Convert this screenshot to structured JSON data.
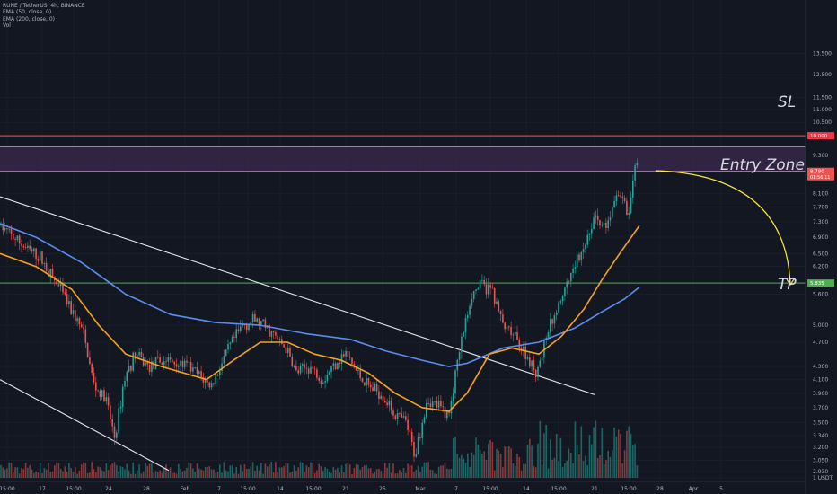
{
  "legend": {
    "symbol_line": "RUNE / TetherUS, 4h, BINANCE",
    "ema50": "EMA (50, close, 0)",
    "ema200": "EMA (200, close, 0)",
    "volume": "Vol"
  },
  "annotations": {
    "sl": "SL",
    "entry": "Entry Zone",
    "tp": "TP"
  },
  "price_labels": {
    "sl": "10.000",
    "current_price": "8.780",
    "countdown": "01:56:11",
    "tp": "5.835"
  },
  "colors": {
    "background": "#131722",
    "grid": "#1e222d",
    "up": "#26a69a",
    "down": "#ef5350",
    "ema50": "#f7a21b",
    "ema200": "#5b8def",
    "sl_line": "#f23645",
    "tp_line": "#4caf50",
    "zone_fill": "#3b2a4d",
    "trendline": "#ffffff",
    "arrow": "#ffeb3b"
  },
  "chart_data": {
    "type": "candlestick",
    "y_scale": "log",
    "currency": "USDT",
    "y_range": [
      2.9,
      16.0
    ],
    "y_ticks": [
      "1 USDT",
      "13.500",
      "12.500",
      "11.500",
      "11.000",
      "10.500",
      "9.300",
      "8.100",
      "7.700",
      "7.300",
      "6.900",
      "6.500",
      "6.200",
      "5.600",
      "5.000",
      "4.700",
      "4.300",
      "4.100",
      "3.900",
      "3.700",
      "3.500",
      "3.340",
      "3.200",
      "3.050",
      "2.930"
    ],
    "x_ticks": [
      "15:00",
      "17",
      "15:00",
      "24",
      "28",
      "Feb",
      "7",
      "15:00",
      "14",
      "15:00",
      "21",
      "25",
      "Mar",
      "7",
      "15:00",
      "14",
      "15:00",
      "21",
      "15:00",
      "28",
      "Apr",
      "5"
    ],
    "levels": {
      "stop_loss": 10.0,
      "entry_zone": [
        8.78,
        9.6
      ],
      "take_profit": 5.835
    },
    "price_path": [
      [
        0,
        7.2
      ],
      [
        30,
        6.6
      ],
      [
        45,
        6.4
      ],
      [
        70,
        5.6
      ],
      [
        92,
        4.9
      ],
      [
        105,
        4.0
      ],
      [
        118,
        3.8
      ],
      [
        128,
        3.3
      ],
      [
        138,
        4.1
      ],
      [
        150,
        4.5
      ],
      [
        165,
        4.3
      ],
      [
        185,
        4.4
      ],
      [
        210,
        4.3
      ],
      [
        235,
        4.0
      ],
      [
        255,
        4.6
      ],
      [
        270,
        5.0
      ],
      [
        285,
        5.1
      ],
      [
        300,
        4.9
      ],
      [
        318,
        4.6
      ],
      [
        330,
        4.2
      ],
      [
        345,
        4.3
      ],
      [
        360,
        4.1
      ],
      [
        375,
        4.4
      ],
      [
        385,
        4.5
      ],
      [
        398,
        4.2
      ],
      [
        410,
        4.0
      ],
      [
        425,
        3.9
      ],
      [
        440,
        3.6
      ],
      [
        452,
        3.5
      ],
      [
        462,
        3.1
      ],
      [
        475,
        3.8
      ],
      [
        490,
        3.7
      ],
      [
        500,
        3.6
      ],
      [
        512,
        4.6
      ],
      [
        525,
        5.6
      ],
      [
        535,
        5.8
      ],
      [
        548,
        5.7
      ],
      [
        560,
        5.0
      ],
      [
        572,
        4.8
      ],
      [
        585,
        4.5
      ],
      [
        597,
        4.2
      ],
      [
        610,
        4.9
      ],
      [
        622,
        5.4
      ],
      [
        635,
        6.0
      ],
      [
        648,
        6.6
      ],
      [
        662,
        7.4
      ],
      [
        675,
        7.1
      ],
      [
        690,
        8.2
      ],
      [
        700,
        7.5
      ],
      [
        708,
        9.0
      ]
    ],
    "ema50": [
      [
        0,
        6.5
      ],
      [
        40,
        6.2
      ],
      [
        80,
        5.7
      ],
      [
        110,
        5.0
      ],
      [
        140,
        4.5
      ],
      [
        180,
        4.3
      ],
      [
        230,
        4.1
      ],
      [
        260,
        4.4
      ],
      [
        290,
        4.7
      ],
      [
        320,
        4.7
      ],
      [
        350,
        4.5
      ],
      [
        380,
        4.4
      ],
      [
        410,
        4.2
      ],
      [
        440,
        3.9
      ],
      [
        470,
        3.7
      ],
      [
        500,
        3.65
      ],
      [
        520,
        3.9
      ],
      [
        545,
        4.5
      ],
      [
        570,
        4.6
      ],
      [
        600,
        4.5
      ],
      [
        625,
        4.8
      ],
      [
        650,
        5.3
      ],
      [
        670,
        5.9
      ],
      [
        690,
        6.5
      ],
      [
        712,
        7.2
      ]
    ],
    "ema200": [
      [
        0,
        7.25
      ],
      [
        40,
        6.9
      ],
      [
        90,
        6.3
      ],
      [
        140,
        5.6
      ],
      [
        190,
        5.2
      ],
      [
        240,
        5.05
      ],
      [
        290,
        5.0
      ],
      [
        340,
        4.85
      ],
      [
        390,
        4.75
      ],
      [
        430,
        4.55
      ],
      [
        470,
        4.4
      ],
      [
        500,
        4.3
      ],
      [
        520,
        4.35
      ],
      [
        560,
        4.6
      ],
      [
        600,
        4.7
      ],
      [
        640,
        4.95
      ],
      [
        670,
        5.25
      ],
      [
        695,
        5.5
      ],
      [
        712,
        5.75
      ]
    ],
    "trendlines": [
      {
        "from": [
          0,
          8.0
        ],
        "to": [
          662,
          3.88
        ]
      },
      {
        "from": [
          0,
          4.1
        ],
        "to": [
          188,
          2.94
        ]
      }
    ],
    "projection_arrow": {
      "from": [
        730,
        8.8
      ],
      "to": [
        880,
        5.8
      ]
    }
  }
}
